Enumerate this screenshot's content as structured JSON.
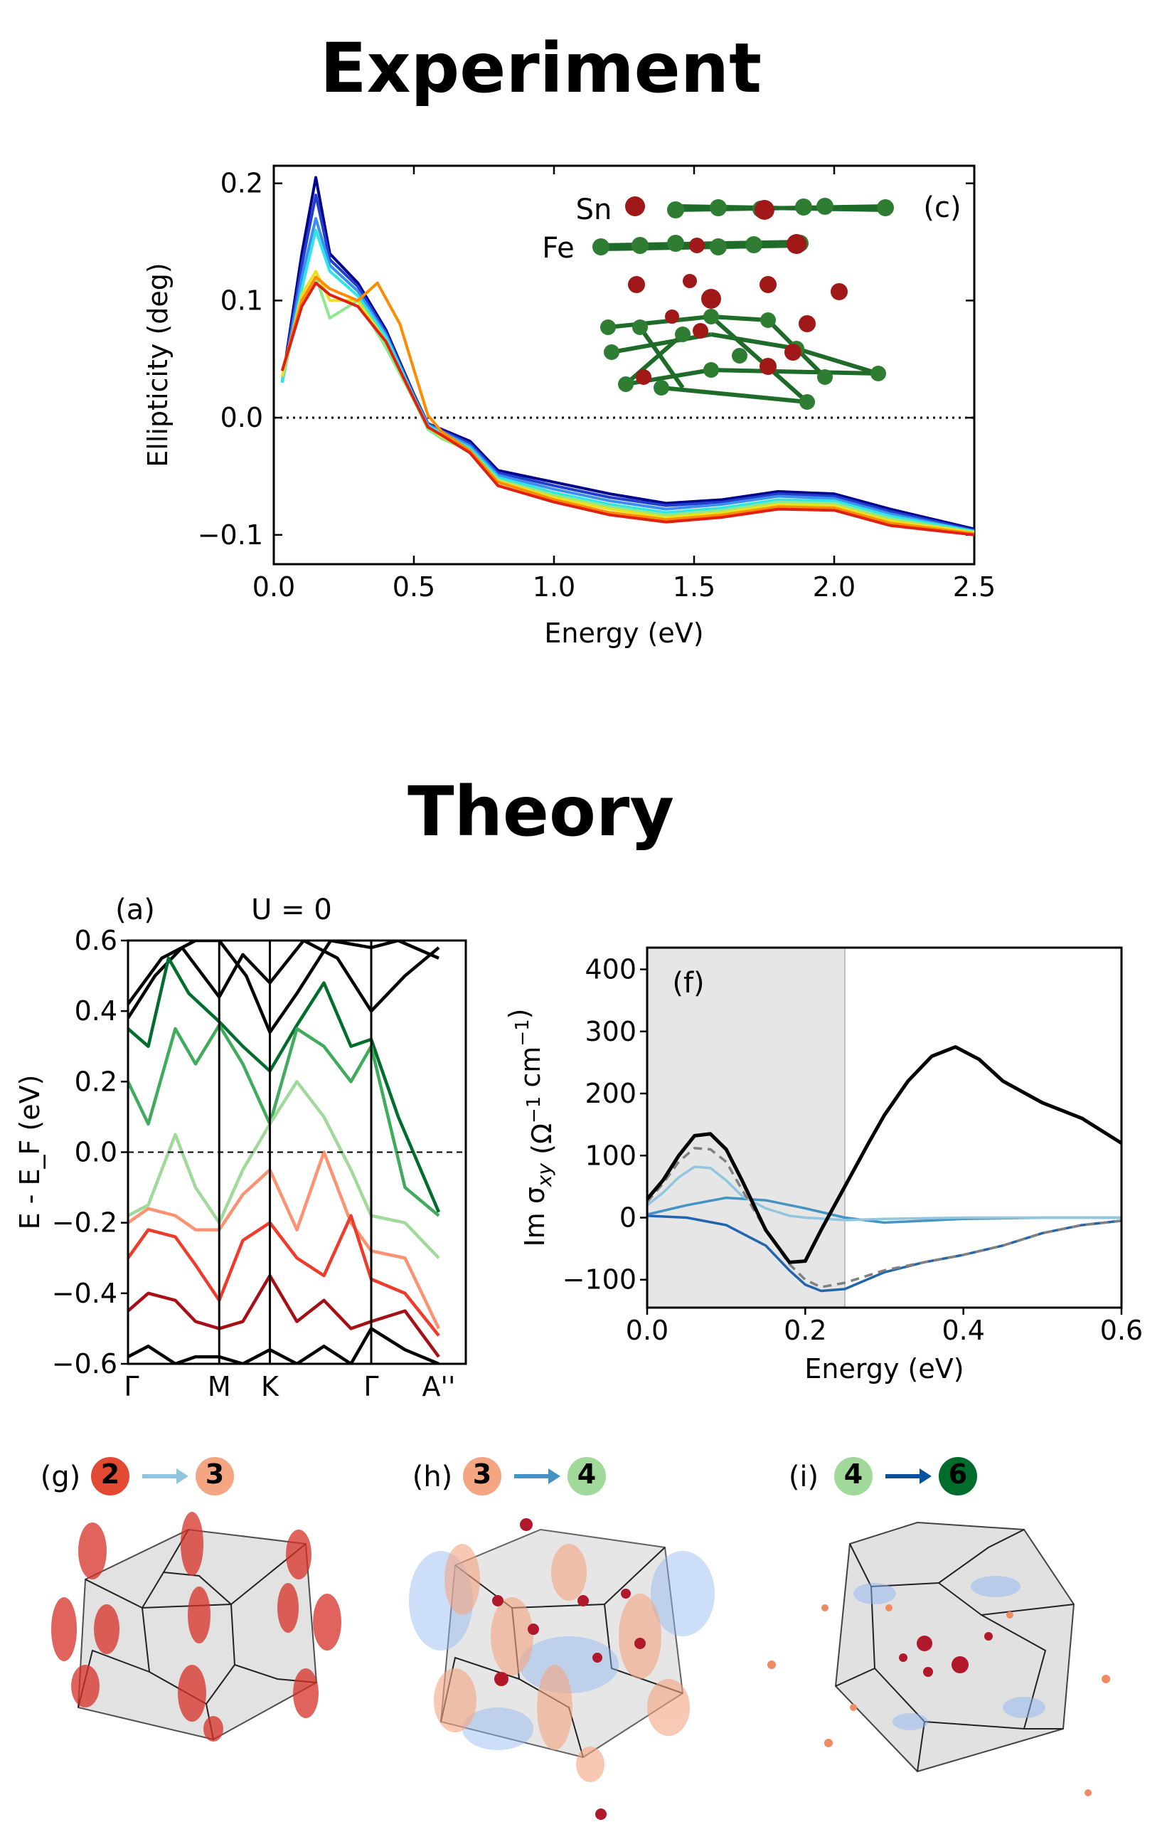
{
  "headings": {
    "experiment": "Experiment",
    "theory": "Theory"
  },
  "chart_data": [
    {
      "id": "c",
      "type": "line",
      "panel_label": "(c)",
      "xlabel": "Energy (eV)",
      "ylabel": "Ellipticity (deg)",
      "xlim": [
        0,
        2.5
      ],
      "ylim": [
        -0.125,
        0.215
      ],
      "xticks": [
        0,
        0.5,
        1.0,
        1.5,
        2.0,
        2.5
      ],
      "xtick_labels": [
        "0.0",
        "0.5",
        "1.0",
        "1.5",
        "2.0",
        "2.5"
      ],
      "yticks": [
        -0.1,
        0,
        0.1,
        0.2
      ],
      "ytick_labels": [
        "−0.1",
        "0.0",
        "0.1",
        "0.2"
      ],
      "reference_line": {
        "y": 0,
        "style": "dotted"
      },
      "inset_labels": [
        {
          "text": "Sn",
          "color": "#d62728"
        },
        {
          "text": "Fe",
          "color": "#2e8b3a"
        }
      ],
      "series": [
        {
          "name": "curve-1",
          "color": "#00008b",
          "x": [
            0.03,
            0.1,
            0.15,
            0.2,
            0.3,
            0.4,
            0.5,
            0.55,
            0.6,
            0.7,
            0.8,
            1.0,
            1.2,
            1.4,
            1.6,
            1.8,
            2.0,
            2.2,
            2.5
          ],
          "y": [
            0.03,
            0.14,
            0.205,
            0.14,
            0.115,
            0.075,
            0.02,
            -0.005,
            -0.01,
            -0.02,
            -0.045,
            -0.055,
            -0.065,
            -0.073,
            -0.07,
            -0.063,
            -0.065,
            -0.078,
            -0.095
          ]
        },
        {
          "name": "curve-2",
          "color": "#1f3fcc",
          "x": [
            0.03,
            0.1,
            0.15,
            0.2,
            0.3,
            0.4,
            0.5,
            0.55,
            0.6,
            0.7,
            0.8,
            1.0,
            1.2,
            1.4,
            1.6,
            1.8,
            2.0,
            2.2,
            2.5
          ],
          "y": [
            0.03,
            0.13,
            0.19,
            0.135,
            0.112,
            0.073,
            0.019,
            -0.005,
            -0.011,
            -0.022,
            -0.047,
            -0.058,
            -0.068,
            -0.075,
            -0.072,
            -0.065,
            -0.067,
            -0.08,
            -0.096
          ]
        },
        {
          "name": "curve-3",
          "color": "#3e8ef0",
          "x": [
            0.03,
            0.1,
            0.15,
            0.2,
            0.3,
            0.4,
            0.5,
            0.55,
            0.6,
            0.7,
            0.8,
            1.0,
            1.2,
            1.4,
            1.6,
            1.8,
            2.0,
            2.2,
            2.5
          ],
          "y": [
            0.03,
            0.12,
            0.17,
            0.13,
            0.108,
            0.071,
            0.018,
            -0.006,
            -0.012,
            -0.024,
            -0.049,
            -0.061,
            -0.071,
            -0.078,
            -0.074,
            -0.067,
            -0.069,
            -0.082,
            -0.097
          ]
        },
        {
          "name": "curve-4",
          "color": "#2ee6e6",
          "x": [
            0.03,
            0.1,
            0.15,
            0.2,
            0.3,
            0.4,
            0.5,
            0.55,
            0.6,
            0.7,
            0.8,
            1.0,
            1.2,
            1.4,
            1.6,
            1.8,
            2.0,
            2.2,
            2.5
          ],
          "y": [
            0.03,
            0.11,
            0.16,
            0.125,
            0.104,
            0.069,
            0.017,
            -0.007,
            -0.013,
            -0.026,
            -0.051,
            -0.064,
            -0.074,
            -0.081,
            -0.077,
            -0.07,
            -0.071,
            -0.084,
            -0.097
          ]
        },
        {
          "name": "curve-5",
          "color": "#8ee88e",
          "x": [
            0.03,
            0.1,
            0.15,
            0.2,
            0.3,
            0.4,
            0.5,
            0.55,
            0.6,
            0.7,
            0.8,
            1.0,
            1.2,
            1.4,
            1.6,
            1.8,
            2.0,
            2.2,
            2.5
          ],
          "y": [
            0.035,
            0.1,
            0.12,
            0.085,
            0.1,
            0.06,
            0.015,
            -0.01,
            -0.018,
            -0.028,
            -0.053,
            -0.066,
            -0.076,
            -0.083,
            -0.079,
            -0.072,
            -0.073,
            -0.086,
            -0.098
          ]
        },
        {
          "name": "curve-6",
          "color": "#e8e020",
          "x": [
            0.03,
            0.1,
            0.15,
            0.2,
            0.3,
            0.4,
            0.5,
            0.55,
            0.6,
            0.7,
            0.8,
            1.0,
            1.2,
            1.4,
            1.6,
            1.8,
            2.0,
            2.2,
            2.5
          ],
          "y": [
            0.035,
            0.105,
            0.125,
            0.1,
            0.1,
            0.065,
            0.016,
            -0.008,
            -0.016,
            -0.029,
            -0.054,
            -0.068,
            -0.078,
            -0.085,
            -0.081,
            -0.074,
            -0.075,
            -0.088,
            -0.098
          ]
        },
        {
          "name": "curve-7",
          "color": "#ff8c00",
          "x": [
            0.03,
            0.1,
            0.15,
            0.2,
            0.3,
            0.37,
            0.45,
            0.55,
            0.6,
            0.7,
            0.8,
            1.0,
            1.2,
            1.4,
            1.6,
            1.8,
            2.0,
            2.2,
            2.5
          ],
          "y": [
            0.04,
            0.1,
            0.12,
            0.11,
            0.1,
            0.115,
            0.08,
            0.002,
            -0.012,
            -0.028,
            -0.055,
            -0.07,
            -0.081,
            -0.087,
            -0.083,
            -0.076,
            -0.077,
            -0.09,
            -0.099
          ]
        },
        {
          "name": "curve-8",
          "color": "#e02010",
          "x": [
            0.03,
            0.1,
            0.15,
            0.2,
            0.3,
            0.4,
            0.5,
            0.55,
            0.6,
            0.7,
            0.8,
            1.0,
            1.2,
            1.4,
            1.6,
            1.8,
            2.0,
            2.2,
            2.5
          ],
          "y": [
            0.04,
            0.095,
            0.115,
            0.105,
            0.095,
            0.065,
            0.016,
            -0.008,
            -0.015,
            -0.03,
            -0.058,
            -0.072,
            -0.083,
            -0.089,
            -0.085,
            -0.078,
            -0.079,
            -0.092,
            -0.1
          ]
        }
      ]
    },
    {
      "id": "a",
      "type": "line",
      "panel_label": "(a)",
      "title": "U = 0",
      "ylabel": "E - E_F (eV)",
      "ylim": [
        -0.6,
        0.6
      ],
      "yticks": [
        -0.6,
        -0.4,
        -0.2,
        0.0,
        0.2,
        0.4,
        0.6
      ],
      "ytick_labels": [
        "−0.6",
        "−0.4",
        "−0.2",
        "0.0",
        "0.2",
        "0.4",
        "0.6"
      ],
      "kpath_labels": [
        "Γ",
        "M",
        "K",
        "Γ",
        "A''"
      ],
      "kpath_positions": [
        0,
        0.27,
        0.42,
        0.72,
        0.92
      ],
      "reference_line": {
        "y": 0,
        "style": "dashed"
      },
      "series": [
        {
          "name": "band-black-1",
          "color": "#000000",
          "x": [
            0,
            0.1,
            0.2,
            0.27,
            0.35,
            0.42,
            0.5,
            0.6,
            0.72,
            0.8,
            0.92
          ],
          "y": [
            0.42,
            0.55,
            0.6,
            0.6,
            0.5,
            0.34,
            0.45,
            0.6,
            0.58,
            0.6,
            0.55
          ]
        },
        {
          "name": "band-black-2",
          "color": "#000000",
          "x": [
            0,
            0.08,
            0.16,
            0.27,
            0.34,
            0.42,
            0.52,
            0.62,
            0.72,
            0.82,
            0.92
          ],
          "y": [
            0.38,
            0.5,
            0.58,
            0.44,
            0.56,
            0.48,
            0.6,
            0.55,
            0.4,
            0.5,
            0.58
          ]
        },
        {
          "name": "band-green-dark",
          "color": "#006d2c",
          "x": [
            0,
            0.06,
            0.12,
            0.18,
            0.27,
            0.34,
            0.42,
            0.5,
            0.58,
            0.66,
            0.72,
            0.8,
            0.92
          ],
          "y": [
            0.35,
            0.3,
            0.55,
            0.45,
            0.37,
            0.3,
            0.23,
            0.36,
            0.48,
            0.3,
            0.32,
            0.1,
            -0.17
          ]
        },
        {
          "name": "band-green-mid",
          "color": "#41ab5d",
          "x": [
            0,
            0.06,
            0.14,
            0.2,
            0.27,
            0.34,
            0.42,
            0.5,
            0.58,
            0.66,
            0.72,
            0.82,
            0.92
          ],
          "y": [
            0.2,
            0.08,
            0.35,
            0.25,
            0.36,
            0.25,
            0.08,
            0.35,
            0.3,
            0.2,
            0.3,
            -0.1,
            -0.18
          ]
        },
        {
          "name": "band-green-light",
          "color": "#a1d99b",
          "x": [
            0,
            0.06,
            0.14,
            0.2,
            0.27,
            0.34,
            0.42,
            0.5,
            0.58,
            0.66,
            0.72,
            0.82,
            0.92
          ],
          "y": [
            -0.18,
            -0.15,
            0.05,
            -0.1,
            -0.2,
            -0.05,
            0.08,
            0.2,
            0.1,
            -0.05,
            -0.18,
            -0.2,
            -0.3
          ]
        },
        {
          "name": "band-red-light",
          "color": "#fc9272",
          "x": [
            0,
            0.06,
            0.14,
            0.2,
            0.27,
            0.34,
            0.42,
            0.5,
            0.58,
            0.66,
            0.72,
            0.82,
            0.92
          ],
          "y": [
            -0.2,
            -0.16,
            -0.18,
            -0.22,
            -0.22,
            -0.12,
            -0.05,
            -0.22,
            0.0,
            -0.2,
            -0.28,
            -0.3,
            -0.5
          ]
        },
        {
          "name": "band-red-mid",
          "color": "#ef3b2c",
          "x": [
            0,
            0.06,
            0.14,
            0.2,
            0.27,
            0.34,
            0.42,
            0.5,
            0.58,
            0.66,
            0.72,
            0.82,
            0.92
          ],
          "y": [
            -0.3,
            -0.22,
            -0.24,
            -0.32,
            -0.42,
            -0.25,
            -0.2,
            -0.3,
            -0.35,
            -0.18,
            -0.36,
            -0.4,
            -0.52
          ]
        },
        {
          "name": "band-red-dark",
          "color": "#a50f15",
          "x": [
            0,
            0.06,
            0.14,
            0.2,
            0.27,
            0.34,
            0.42,
            0.5,
            0.58,
            0.66,
            0.72,
            0.82,
            0.92
          ],
          "y": [
            -0.45,
            -0.4,
            -0.42,
            -0.48,
            -0.5,
            -0.48,
            -0.35,
            -0.48,
            -0.42,
            -0.5,
            -0.48,
            -0.45,
            -0.58
          ]
        },
        {
          "name": "band-black-3",
          "color": "#000000",
          "x": [
            0,
            0.06,
            0.14,
            0.2,
            0.27,
            0.34,
            0.42,
            0.5,
            0.58,
            0.66,
            0.72,
            0.82,
            0.92
          ],
          "y": [
            -0.58,
            -0.55,
            -0.6,
            -0.58,
            -0.58,
            -0.6,
            -0.56,
            -0.6,
            -0.55,
            -0.6,
            -0.5,
            -0.56,
            -0.6
          ]
        }
      ]
    },
    {
      "id": "f",
      "type": "line",
      "panel_label": "(f)",
      "xlabel": "Energy (eV)",
      "ylabel": "Im σ",
      "ylabel_sub": "xy",
      "ylabel_units": "(Ω",
      "ylabel_exp1": "−1",
      "ylabel_units2": " cm",
      "ylabel_exp2": "−1",
      "ylabel_close": ")",
      "xlim": [
        0,
        0.6
      ],
      "ylim": [
        -145,
        435
      ],
      "xticks": [
        0,
        0.2,
        0.4,
        0.6
      ],
      "xtick_labels": [
        "0.0",
        "0.2",
        "0.4",
        "0.6"
      ],
      "yticks": [
        -100,
        0,
        100,
        200,
        300,
        400
      ],
      "ytick_labels": [
        "−100",
        "0",
        "100",
        "200",
        "300",
        "400"
      ],
      "shaded_region": [
        0,
        0.25
      ],
      "series": [
        {
          "name": "total",
          "color": "#000000",
          "style": "solid",
          "x": [
            0,
            0.02,
            0.04,
            0.06,
            0.08,
            0.1,
            0.12,
            0.15,
            0.18,
            0.2,
            0.22,
            0.25,
            0.28,
            0.3,
            0.33,
            0.36,
            0.39,
            0.42,
            0.45,
            0.5,
            0.55,
            0.6
          ],
          "y": [
            30,
            60,
            100,
            132,
            135,
            110,
            60,
            -20,
            -72,
            -70,
            -20,
            50,
            120,
            165,
            220,
            260,
            275,
            255,
            220,
            185,
            160,
            120
          ]
        },
        {
          "name": "dashed-sum",
          "color": "#808080",
          "style": "dashed",
          "x": [
            0,
            0.02,
            0.04,
            0.06,
            0.08,
            0.1,
            0.12,
            0.15,
            0.18,
            0.2,
            0.22,
            0.25,
            0.3,
            0.35,
            0.4,
            0.45,
            0.5,
            0.55,
            0.6
          ],
          "y": [
            25,
            55,
            90,
            112,
            110,
            90,
            45,
            -20,
            -75,
            -100,
            -112,
            -105,
            -85,
            -72,
            -60,
            -45,
            -25,
            -12,
            -5
          ]
        },
        {
          "name": "transition-2-3",
          "color": "#92c5de",
          "style": "solid",
          "x": [
            0,
            0.02,
            0.04,
            0.06,
            0.08,
            0.1,
            0.12,
            0.15,
            0.18,
            0.2,
            0.25,
            0.3,
            0.4,
            0.5,
            0.6
          ],
          "y": [
            20,
            40,
            65,
            82,
            80,
            60,
            35,
            15,
            3,
            0,
            -4,
            -2,
            0,
            0,
            0
          ]
        },
        {
          "name": "transition-3-4",
          "color": "#4393c3",
          "style": "solid",
          "x": [
            0,
            0.05,
            0.1,
            0.15,
            0.2,
            0.25,
            0.3,
            0.35,
            0.4,
            0.5,
            0.6
          ],
          "y": [
            5,
            20,
            32,
            28,
            15,
            0,
            -8,
            -5,
            -2,
            0,
            0
          ]
        },
        {
          "name": "transition-4-6",
          "color": "#2166ac",
          "style": "solid",
          "x": [
            0,
            0.05,
            0.1,
            0.15,
            0.18,
            0.2,
            0.22,
            0.25,
            0.3,
            0.35,
            0.4,
            0.45,
            0.5,
            0.55,
            0.6
          ],
          "y": [
            3,
            0,
            -12,
            -45,
            -85,
            -108,
            -118,
            -115,
            -88,
            -72,
            -60,
            -45,
            -25,
            -12,
            -5
          ]
        }
      ]
    }
  ],
  "panels_bz": [
    {
      "label": "(g)",
      "from": "2",
      "to": "3",
      "from_color": "#e34a33",
      "to_color": "#f4a582",
      "arrow_color": "#92c5de"
    },
    {
      "label": "(h)",
      "from": "3",
      "to": "4",
      "from_color": "#f4a582",
      "to_color": "#a1d99b",
      "arrow_color": "#4393c3"
    },
    {
      "label": "(i)",
      "from": "4",
      "to": "6",
      "from_color": "#a1d99b",
      "to_color": "#006d2c",
      "arrow_color": "#08519c"
    }
  ]
}
